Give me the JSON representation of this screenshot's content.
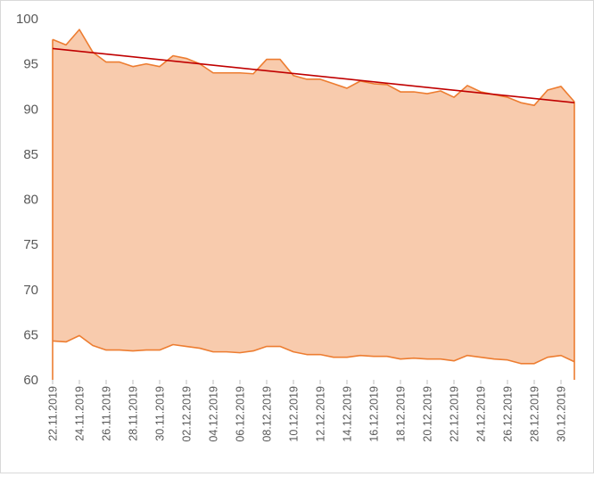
{
  "chart_data": {
    "type": "area",
    "title": "",
    "xlabel": "",
    "ylabel": "",
    "ylim": [
      60,
      100
    ],
    "yticks": [
      60,
      65,
      70,
      75,
      80,
      85,
      90,
      95,
      100
    ],
    "grid": false,
    "legend": "none",
    "x": [
      "22.11.2019",
      "23.11.2019",
      "24.11.2019",
      "25.11.2019",
      "26.11.2019",
      "27.11.2019",
      "28.11.2019",
      "29.11.2019",
      "30.11.2019",
      "01.12.2019",
      "02.12.2019",
      "03.12.2019",
      "04.12.2019",
      "05.12.2019",
      "06.12.2019",
      "07.12.2019",
      "08.12.2019",
      "09.12.2019",
      "10.12.2019",
      "11.12.2019",
      "12.12.2019",
      "13.12.2019",
      "14.12.2019",
      "15.12.2019",
      "16.12.2019",
      "17.12.2019",
      "18.12.2019",
      "19.12.2019",
      "20.12.2019",
      "21.12.2019",
      "22.12.2019",
      "23.12.2019",
      "24.12.2019",
      "25.12.2019",
      "26.12.2019",
      "27.12.2019",
      "28.12.2019",
      "29.12.2019",
      "30.12.2019",
      "31.12.2019"
    ],
    "x_tick_labels": [
      "22.11.2019",
      "24.11.2019",
      "26.11.2019",
      "28.11.2019",
      "30.11.2019",
      "02.12.2019",
      "04.12.2019",
      "06.12.2019",
      "08.12.2019",
      "10.12.2019",
      "12.12.2019",
      "14.12.2019",
      "16.12.2019",
      "18.12.2019",
      "20.12.2019",
      "22.12.2019",
      "24.12.2019",
      "26.12.2019",
      "28.12.2019",
      "30.12.2019"
    ],
    "series": [
      {
        "role": "upper",
        "values": [
          97.7,
          97.1,
          98.8,
          96.3,
          95.2,
          95.2,
          94.7,
          95.0,
          94.7,
          95.9,
          95.6,
          95.0,
          94.0,
          94.0,
          94.0,
          93.9,
          95.5,
          95.5,
          93.7,
          93.3,
          93.3,
          92.8,
          92.3,
          93.1,
          92.8,
          92.7,
          91.9,
          91.9,
          91.7,
          92.0,
          91.3,
          92.6,
          91.9,
          91.6,
          91.3,
          90.7,
          90.4,
          92.1,
          92.5,
          90.8
        ]
      },
      {
        "role": "lower",
        "values": [
          64.3,
          64.2,
          64.9,
          63.8,
          63.3,
          63.3,
          63.2,
          63.3,
          63.3,
          63.9,
          63.7,
          63.5,
          63.1,
          63.1,
          63.0,
          63.2,
          63.7,
          63.7,
          63.1,
          62.8,
          62.8,
          62.5,
          62.5,
          62.7,
          62.6,
          62.6,
          62.3,
          62.4,
          62.3,
          62.3,
          62.1,
          62.7,
          62.5,
          62.3,
          62.2,
          61.8,
          61.8,
          62.5,
          62.7,
          62.0
        ]
      }
    ],
    "trendline": {
      "start": 96.7,
      "end": 90.7
    },
    "colors": {
      "fill": "#f8cbad",
      "edge": "#ed7d31",
      "trend": "#c00000",
      "axis": "#ed7d31",
      "tick_text": "#595959"
    }
  }
}
